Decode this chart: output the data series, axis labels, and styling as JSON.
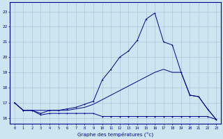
{
  "xlabel": "Graphe des températures (°c)",
  "bg_color": "#cce5f0",
  "line_color": "#00008b",
  "grid_color": "#aac8dc",
  "x_ticks": [
    0,
    1,
    2,
    3,
    4,
    5,
    6,
    7,
    8,
    9,
    10,
    11,
    12,
    13,
    14,
    15,
    16,
    17,
    18,
    19,
    20,
    21,
    22,
    23
  ],
  "y_ticks": [
    16,
    17,
    18,
    19,
    20,
    21,
    22,
    23
  ],
  "ylim": [
    15.6,
    23.6
  ],
  "xlim": [
    -0.5,
    23.5
  ],
  "series1_x": [
    0,
    1,
    2,
    3,
    4,
    5,
    6,
    7,
    8,
    9,
    10,
    11,
    12,
    13,
    14,
    15,
    16,
    17,
    18,
    19,
    20,
    21,
    22,
    23
  ],
  "series1_y": [
    17.0,
    16.5,
    16.5,
    16.2,
    16.3,
    16.3,
    16.3,
    16.3,
    16.3,
    16.3,
    16.1,
    16.1,
    16.1,
    16.1,
    16.1,
    16.1,
    16.1,
    16.1,
    16.1,
    16.1,
    16.1,
    16.1,
    16.1,
    15.9
  ],
  "series2_x": [
    0,
    1,
    2,
    3,
    4,
    5,
    6,
    7,
    8,
    9,
    10,
    11,
    12,
    13,
    14,
    15,
    16,
    17,
    18,
    19,
    20,
    21,
    22,
    23
  ],
  "series2_y": [
    17.0,
    16.5,
    16.5,
    16.5,
    16.5,
    16.5,
    16.5,
    16.6,
    16.7,
    16.9,
    17.2,
    17.5,
    17.8,
    18.1,
    18.4,
    18.7,
    19.0,
    19.2,
    19.0,
    19.0,
    17.5,
    17.4,
    16.6,
    15.9
  ],
  "series3_x": [
    0,
    1,
    2,
    3,
    4,
    5,
    6,
    7,
    8,
    9,
    10,
    11,
    12,
    13,
    14,
    15,
    16,
    17,
    18,
    19,
    20,
    21,
    22,
    23
  ],
  "series3_y": [
    17.0,
    16.5,
    16.5,
    16.3,
    16.5,
    16.5,
    16.6,
    16.7,
    16.9,
    17.1,
    18.5,
    19.2,
    20.0,
    20.4,
    21.1,
    22.5,
    22.9,
    21.0,
    20.8,
    19.0,
    17.5,
    17.4,
    16.6,
    15.9
  ]
}
